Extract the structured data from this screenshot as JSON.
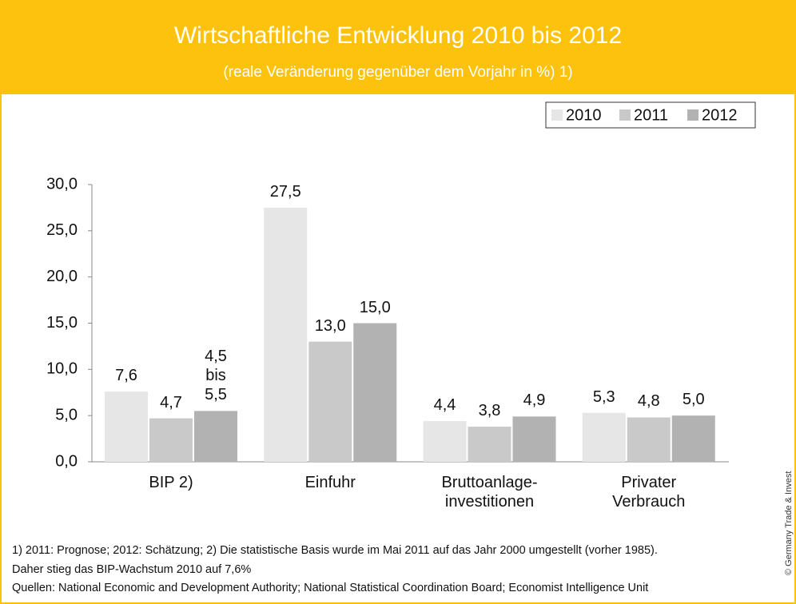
{
  "chart_data": {
    "type": "bar",
    "title": "Wirtschaftliche Entwicklung 2010 bis 2012",
    "subtitle": "(reale Veränderung gegenüber dem Vorjahr in %) 1)",
    "categories": [
      "BIP 2)",
      "Einfuhr",
      "Bruttoanlage-\ninvestitionen",
      "Privater\nVerbrauch"
    ],
    "series": [
      {
        "name": "2010",
        "color": "#e6e6e6",
        "values": [
          7.6,
          27.5,
          4.4,
          5.3
        ],
        "value_labels": [
          "7,6",
          "27,5",
          "4,4",
          "5,3"
        ]
      },
      {
        "name": "2011",
        "color": "#c9c9c9",
        "values": [
          4.7,
          13.0,
          3.8,
          4.8
        ],
        "value_labels": [
          "4,7",
          "13,0",
          "3,8",
          "4,8"
        ]
      },
      {
        "name": "2012",
        "color": "#b2b2b2",
        "values": [
          5.5,
          15.0,
          4.9,
          5.0
        ],
        "value_labels": [
          "4,5\nbis\n5,5",
          "15,0",
          "4,9",
          "5,0"
        ]
      }
    ],
    "ylim": [
      0,
      30
    ],
    "yticks": [
      {
        "value": 0,
        "label": "0,0"
      },
      {
        "value": 5,
        "label": "5,0"
      },
      {
        "value": 10,
        "label": "10,0"
      },
      {
        "value": 15,
        "label": "15,0"
      },
      {
        "value": 20,
        "label": "20,0"
      },
      {
        "value": 25,
        "label": "25,0"
      },
      {
        "value": 30,
        "label": "30,0"
      }
    ],
    "legend": "top-right",
    "annotations": [
      "1) 2011: Prognose; 2012: Schätzung; 2) Die statistische Basis wurde im Mai 2011 auf das Jahr 2000 umgestellt (vorher 1985).",
      "Daher stieg das BIP-Wachstum 2010 auf 7,6%",
      "Quellen: National Economic and Development Authority; National Statistical Coordination Board; Economist Intelligence Unit"
    ],
    "credit": "© Germany Trade & Invest"
  }
}
